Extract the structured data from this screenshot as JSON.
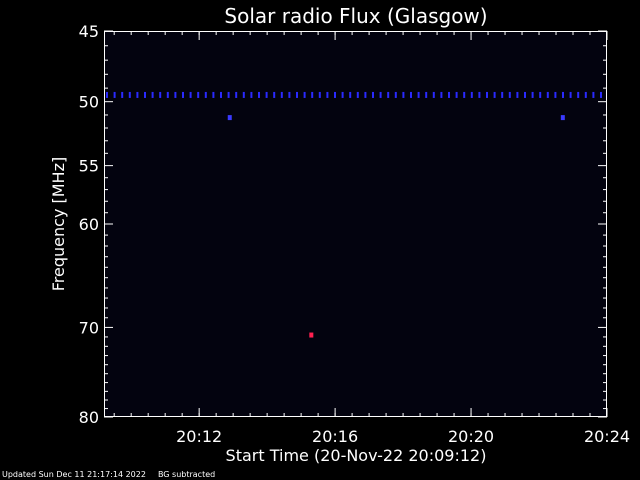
{
  "chart_data": {
    "type": "heatmap",
    "title": "Solar radio Flux (Glasgow)",
    "xlabel": "Start Time (20-Nov-22 20:09:12)",
    "ylabel": "Frequency [MHz]",
    "x_unit": "time (HH:MM)",
    "xlim": [
      "20:09:12",
      "20:24:00"
    ],
    "ylim": [
      45,
      80
    ],
    "y_scale": "log",
    "y_inverted": true,
    "x_ticks": [
      "20:12",
      "20:16",
      "20:20",
      "20:24"
    ],
    "y_ticks": [
      45,
      50,
      55,
      60,
      70,
      80
    ],
    "background_color": "#03030f",
    "features": [
      {
        "kind": "dotted-band",
        "frequency_mhz": 49.5,
        "time_start": "20:09:12",
        "time_end": "20:24:00",
        "color": "#2a2aff"
      },
      {
        "kind": "spot",
        "time": "20:12:54",
        "frequency_mhz": 51.2,
        "color": "#3a3aff"
      },
      {
        "kind": "spot",
        "time": "20:22:42",
        "frequency_mhz": 51.2,
        "color": "#3a3aff"
      },
      {
        "kind": "spot",
        "time": "20:15:18",
        "frequency_mhz": 70.8,
        "color": "#ff2050"
      }
    ]
  },
  "footer": {
    "updated": "Updated Sun Dec 11 21:17:14 2022",
    "note": "BG subtracted"
  }
}
